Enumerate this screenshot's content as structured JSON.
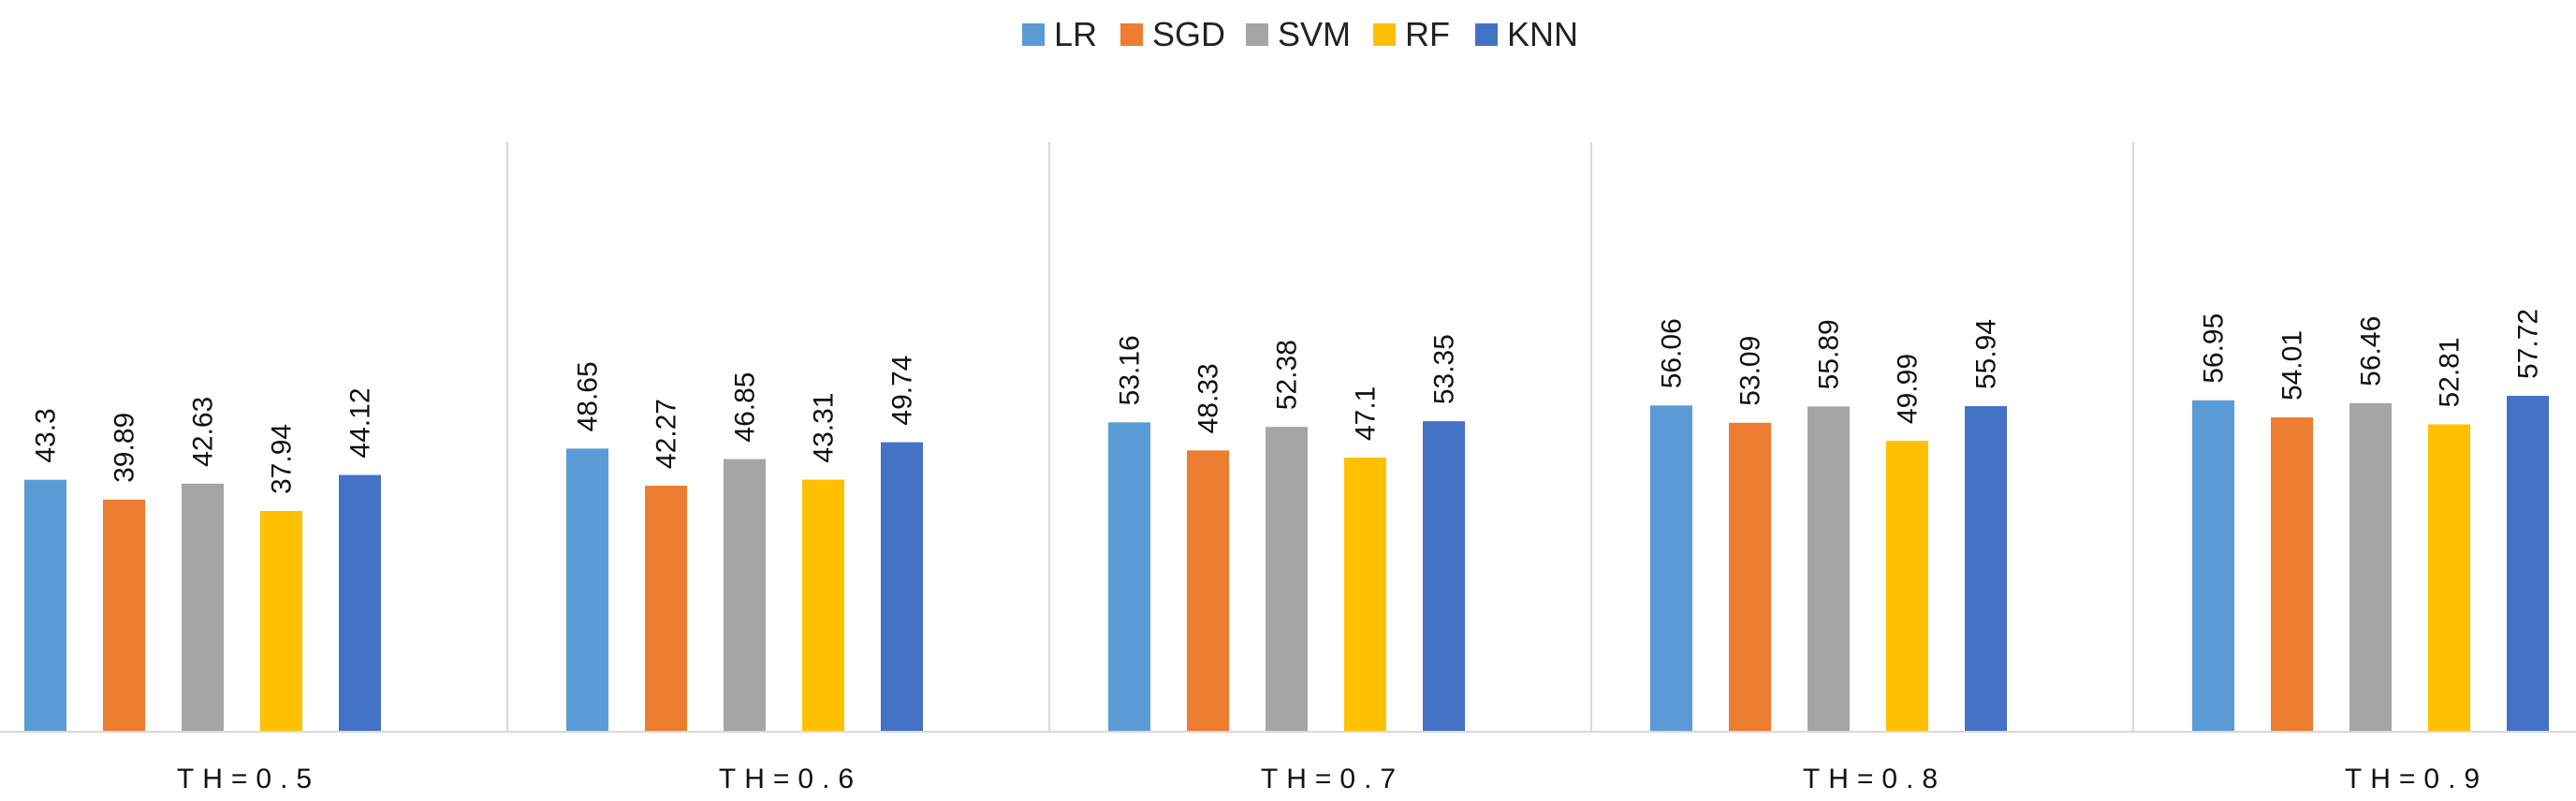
{
  "chart_data": {
    "type": "bar",
    "title": "",
    "xlabel": "",
    "ylabel": "",
    "ylim": [
      0,
      60
    ],
    "grid": false,
    "legend_position": "top-center",
    "categories": [
      "TH=0.5",
      "TH=0.6",
      "TH=0.7",
      "TH=0.8",
      "TH=0.9"
    ],
    "series": [
      {
        "name": "LR",
        "color": "#5B9BD5",
        "values": [
          43.3,
          48.65,
          53.16,
          56.06,
          56.95
        ]
      },
      {
        "name": "SGD",
        "color": "#ED7D31",
        "values": [
          39.89,
          42.27,
          48.33,
          53.09,
          54.01
        ]
      },
      {
        "name": "SVM",
        "color": "#A5A5A5",
        "values": [
          42.63,
          46.85,
          52.38,
          55.89,
          56.46
        ]
      },
      {
        "name": "RF",
        "color": "#FFC000",
        "values": [
          37.94,
          43.31,
          47.1,
          49.99,
          52.81
        ]
      },
      {
        "name": "KNN",
        "color": "#4472C4",
        "values": [
          44.12,
          49.74,
          53.35,
          55.94,
          57.72
        ]
      }
    ],
    "data_labels": [
      [
        "43.3",
        "48.65",
        "53.16",
        "56.06",
        "56.95"
      ],
      [
        "39.89",
        "42.27",
        "48.33",
        "53.09",
        "54.01"
      ],
      [
        "42.63",
        "46.85",
        "52.38",
        "55.89",
        "56.46"
      ],
      [
        "37.94",
        "43.31",
        "47.1",
        "49.99",
        "52.81"
      ],
      [
        "44.12",
        "49.74",
        "53.35",
        "55.94",
        "57.72"
      ]
    ],
    "colors": {
      "axis": "#D9D9D9",
      "separator": "#D9D9D9",
      "text": "#111111"
    }
  }
}
